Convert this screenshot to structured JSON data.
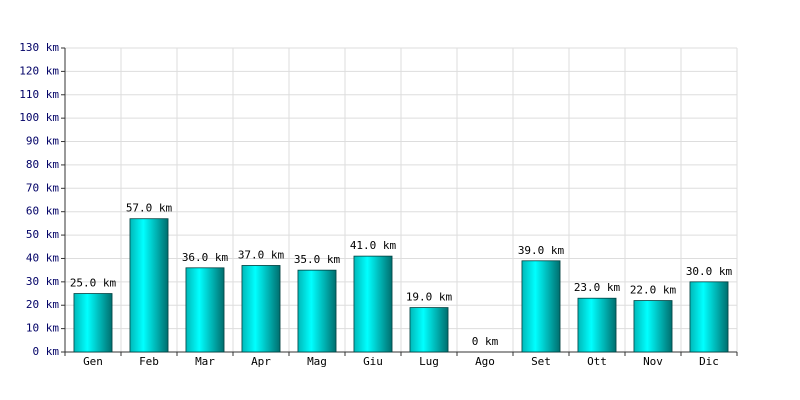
{
  "chart_data": {
    "type": "bar",
    "categories": [
      "Gen",
      "Feb",
      "Mar",
      "Apr",
      "Mag",
      "Giu",
      "Lug",
      "Ago",
      "Set",
      "Ott",
      "Nov",
      "Dic"
    ],
    "values": [
      25,
      57,
      36,
      37,
      35,
      41,
      19,
      0,
      39,
      23,
      22,
      30
    ],
    "value_labels": [
      "25.0 km",
      "57.0 km",
      "36.0 km",
      "37.0 km",
      "35.0 km",
      "41.0 km",
      "19.0 km",
      "0 km",
      "39.0 km",
      "23.0 km",
      "22.0 km",
      "30.0 km"
    ],
    "color": "#00e0e0",
    "ylim": [
      0,
      130
    ],
    "yticks": [
      {
        "value": 0,
        "label": "0 km"
      },
      {
        "value": 10,
        "label": "10 km"
      },
      {
        "value": 20,
        "label": "20 km"
      },
      {
        "value": 30,
        "label": "30 km"
      },
      {
        "value": 40,
        "label": "40 km"
      },
      {
        "value": 50,
        "label": "50 km"
      },
      {
        "value": 60,
        "label": "60 km"
      },
      {
        "value": 70,
        "label": "70 km"
      },
      {
        "value": 80,
        "label": "80 km"
      },
      {
        "value": 90,
        "label": "90 km"
      },
      {
        "value": 100,
        "label": "100 km"
      },
      {
        "value": 110,
        "label": "110 km"
      },
      {
        "value": 120,
        "label": "120 km"
      },
      {
        "value": 130,
        "label": "130 km"
      }
    ],
    "grid": true
  }
}
